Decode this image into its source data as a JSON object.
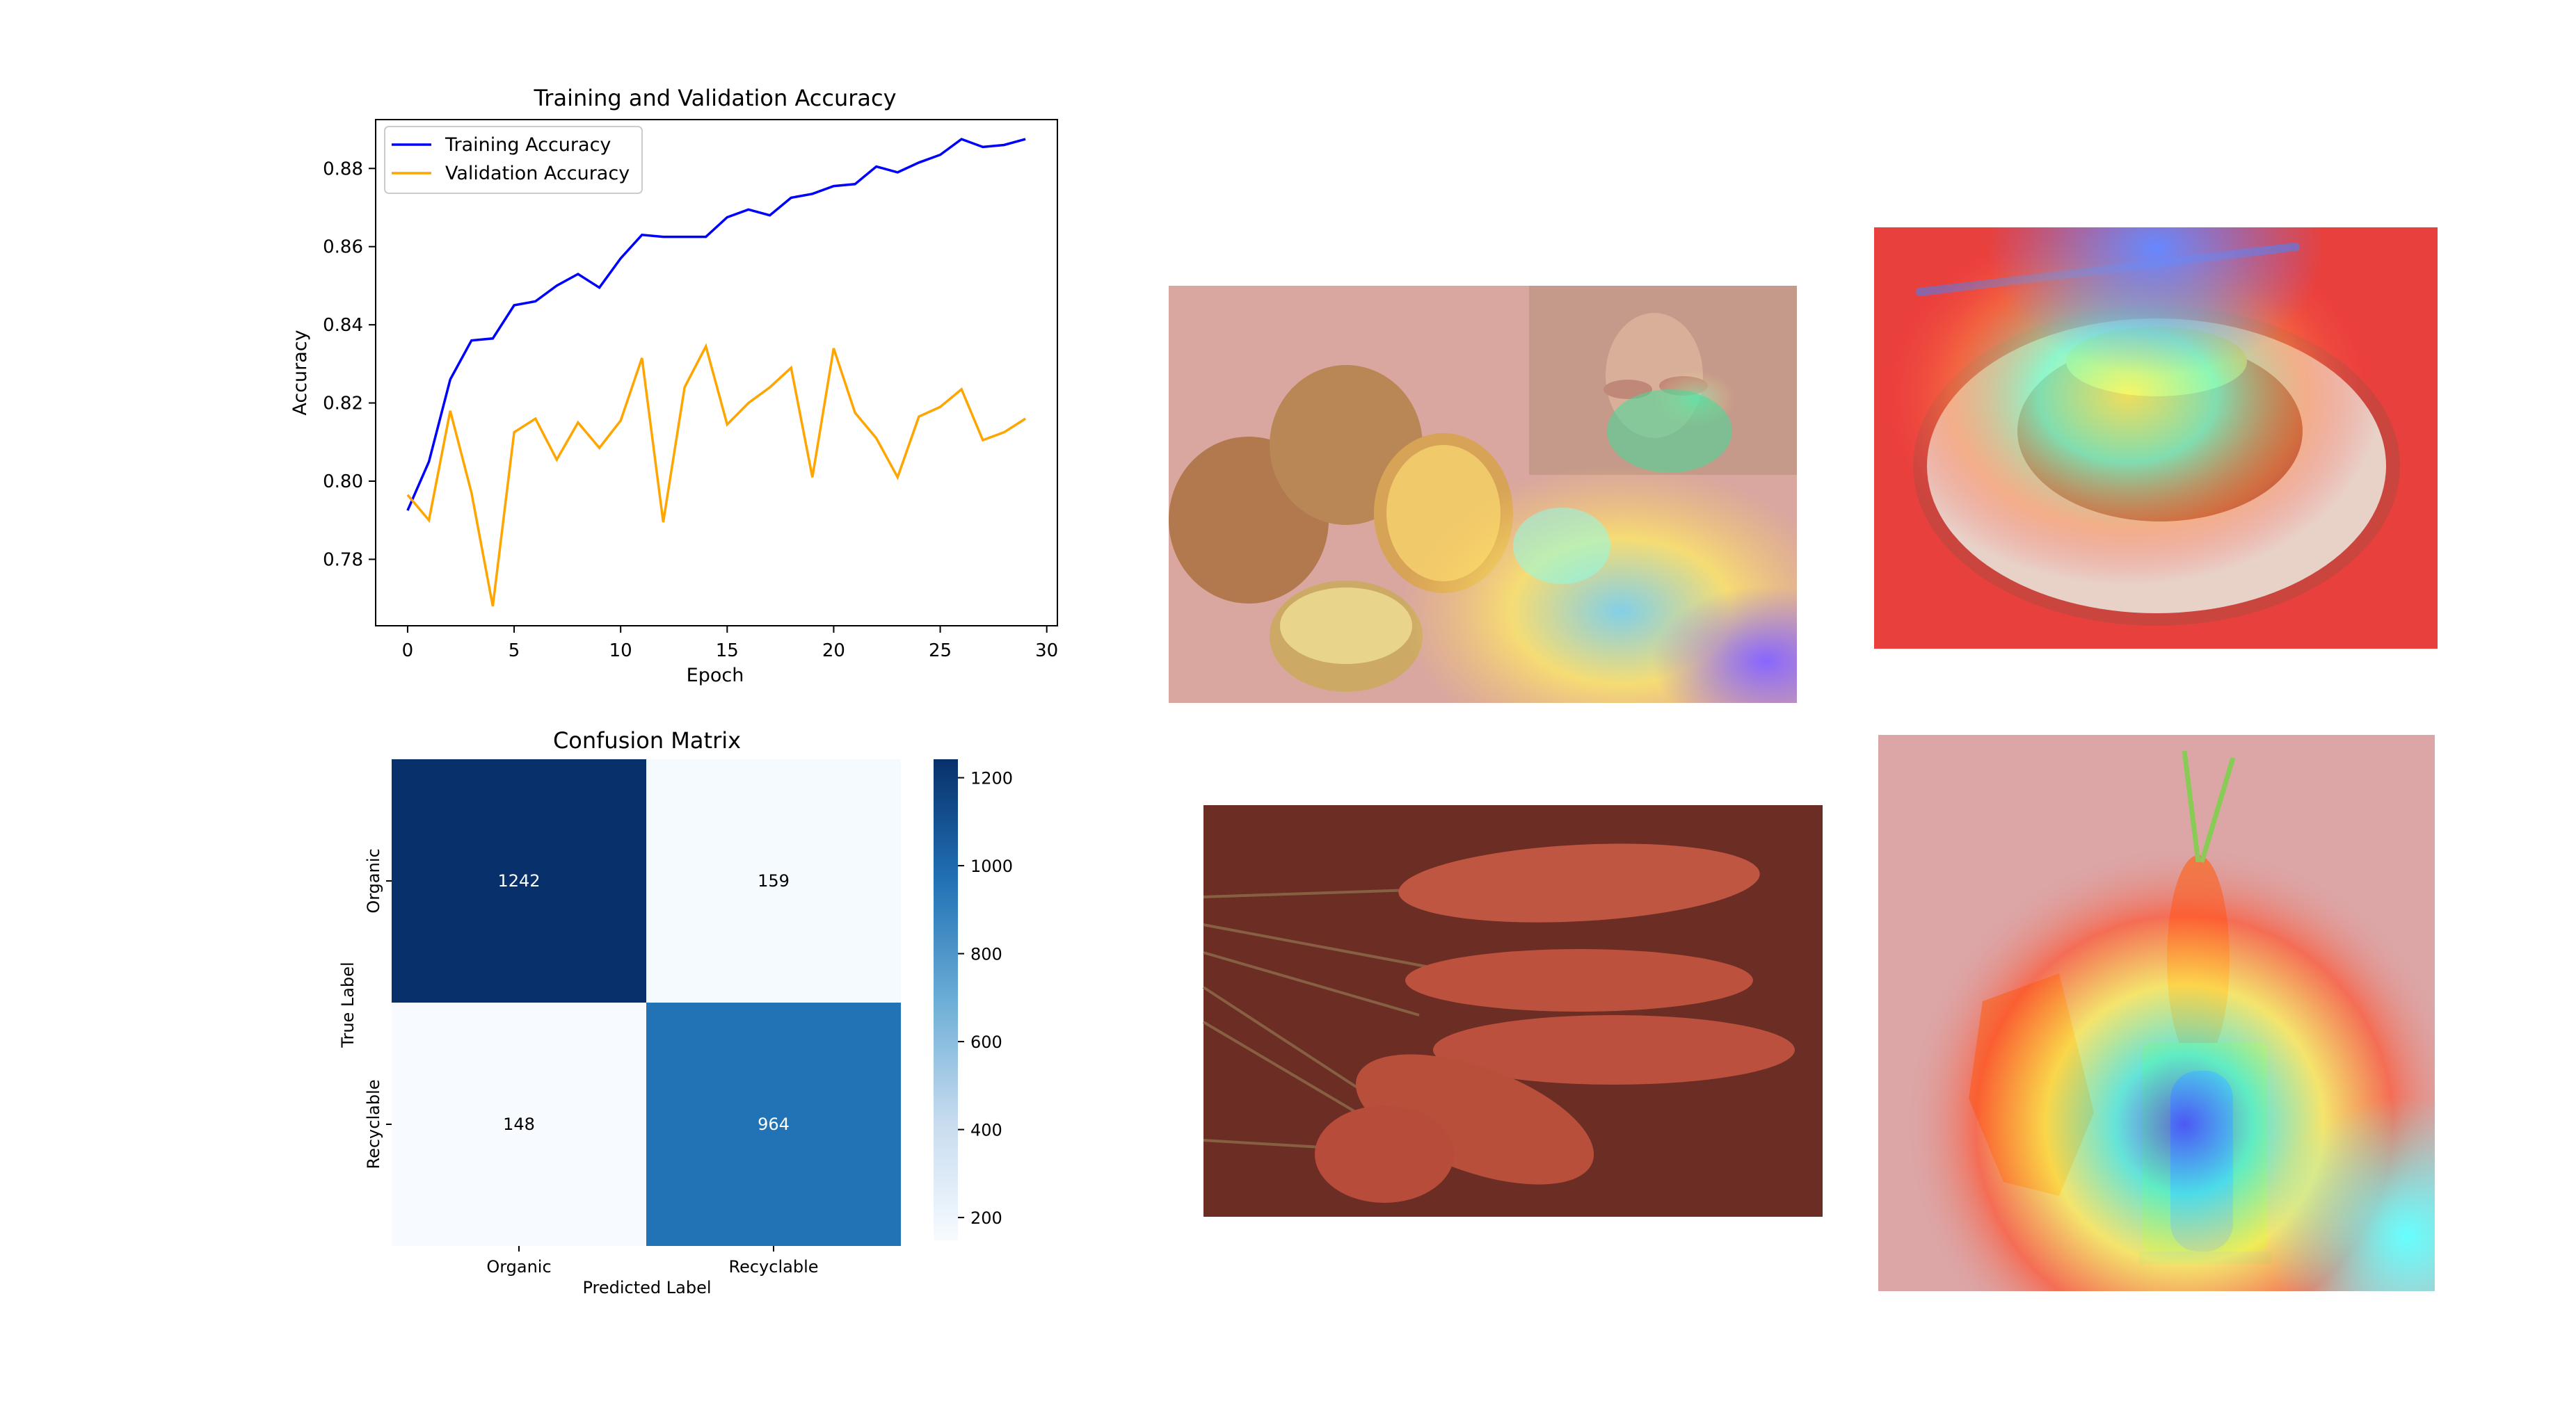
{
  "chart_data": [
    {
      "type": "line",
      "title": "Training and Validation Accuracy",
      "xlabel": "Epoch",
      "ylabel": "Accuracy",
      "xlim": [
        -1.5,
        30.5
      ],
      "ylim": [
        0.763,
        0.8925
      ],
      "xticks": [
        0,
        5,
        10,
        15,
        20,
        25,
        30
      ],
      "yticks": [
        0.78,
        0.8,
        0.82,
        0.84,
        0.86,
        0.88
      ],
      "grid": false,
      "legend": "top-left",
      "x": [
        0,
        1,
        2,
        3,
        4,
        5,
        6,
        7,
        8,
        9,
        10,
        11,
        12,
        13,
        14,
        15,
        16,
        17,
        18,
        19,
        20,
        21,
        22,
        23,
        24,
        25,
        26,
        27,
        28,
        29
      ],
      "series": [
        {
          "name": "Training Accuracy",
          "color": "#0000ff",
          "values": [
            0.7925,
            0.805,
            0.826,
            0.836,
            0.8365,
            0.845,
            0.846,
            0.85,
            0.853,
            0.8495,
            0.857,
            0.863,
            0.8625,
            0.8625,
            0.8625,
            0.8675,
            0.8695,
            0.868,
            0.8725,
            0.8735,
            0.8755,
            0.876,
            0.8805,
            0.879,
            0.8815,
            0.8835,
            0.8875,
            0.8855,
            0.886,
            0.8875
          ]
        },
        {
          "name": "Validation Accuracy",
          "color": "#ffa500",
          "values": [
            0.7965,
            0.79,
            0.818,
            0.797,
            0.768,
            0.8125,
            0.816,
            0.8055,
            0.815,
            0.8085,
            0.8155,
            0.8315,
            0.7895,
            0.824,
            0.8345,
            0.8145,
            0.82,
            0.824,
            0.829,
            0.801,
            0.834,
            0.8175,
            0.811,
            0.801,
            0.8165,
            0.819,
            0.8235,
            0.8105,
            0.8125,
            0.816
          ]
        }
      ]
    },
    {
      "type": "heatmap",
      "title": "Confusion Matrix",
      "xlabel": "Predicted Label",
      "ylabel": "True Label",
      "x_categories": [
        "Organic",
        "Recyclable"
      ],
      "y_categories": [
        "Organic",
        "Recyclable"
      ],
      "values": [
        [
          1242,
          159
        ],
        [
          148,
          964
        ]
      ],
      "colormap": "Blues",
      "colorbar": {
        "min": 148,
        "max": 1242,
        "ticks": [
          200,
          400,
          600,
          800,
          1000,
          1200
        ]
      }
    }
  ],
  "images": [
    {
      "name": "potatoes-heatmap-image",
      "description_icon": "potato-photo"
    },
    {
      "name": "baked-potato-heatmap-image",
      "description_icon": "baked-potato-photo"
    },
    {
      "name": "carrots-heatmap-image",
      "description_icon": "carrot-photo"
    },
    {
      "name": "carrot-sharpener-heatmap-image",
      "description_icon": "carrot-sharpener-photo"
    }
  ]
}
